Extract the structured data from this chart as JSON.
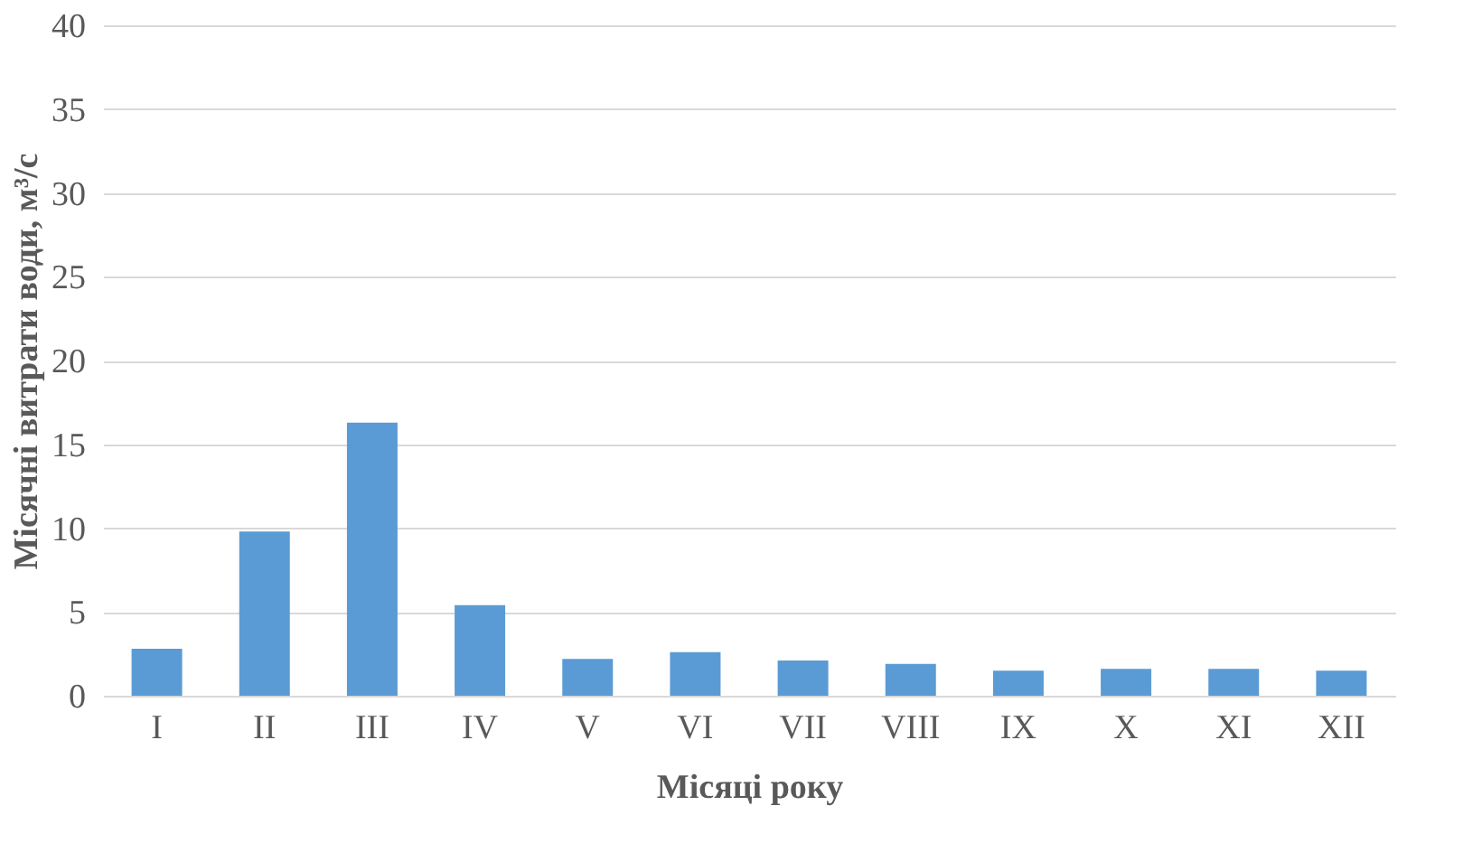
{
  "chart_data": {
    "type": "bar",
    "xlabel": "Місяці року",
    "ylabel": "Місячні витрати води, м³/с",
    "categories": [
      "I",
      "II",
      "III",
      "IV",
      "V",
      "VI",
      "VII",
      "VIII",
      "IX",
      "X",
      "XI",
      "XII"
    ],
    "values": [
      2.8,
      9.8,
      16.3,
      5.4,
      2.2,
      2.6,
      2.1,
      1.9,
      1.5,
      1.6,
      1.6,
      1.5
    ],
    "color": "#5b9bd5",
    "ylim": [
      0,
      40
    ],
    "yticks": [
      0,
      5,
      10,
      15,
      20,
      25,
      30,
      35,
      40
    ],
    "grid": "y"
  }
}
